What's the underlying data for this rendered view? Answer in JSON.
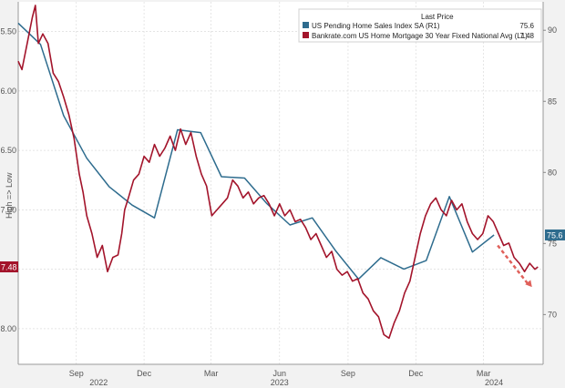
{
  "chart_data": {
    "type": "line",
    "grid": true,
    "legend_position": "top-right",
    "legend_header": "Last Price",
    "left_axis": {
      "inverted": true,
      "range": [
        5.25,
        8.3
      ],
      "ticks": [
        "5.50",
        "6.00",
        "6.50",
        "7.00",
        "7.50",
        "8.00"
      ],
      "tick_values": [
        5.5,
        6.0,
        6.5,
        7.0,
        7.5,
        8.0
      ],
      "overlay_text": "High => Low"
    },
    "right_axis": {
      "range": [
        66.5,
        92.0
      ],
      "ticks": [
        "70",
        "75",
        "80",
        "85",
        "90"
      ],
      "tick_values": [
        70,
        75,
        80,
        85,
        90
      ]
    },
    "x_axis": {
      "range": [
        "2022-06-15",
        "2024-05-20"
      ],
      "ticks": [
        {
          "date": "2022-09-01",
          "label": "Sep"
        },
        {
          "date": "2022-12-01",
          "label": "Dec"
        },
        {
          "date": "2023-03-01",
          "label": "Mar"
        },
        {
          "date": "2023-06-01",
          "label": "Jun"
        },
        {
          "date": "2023-09-01",
          "label": "Sep"
        },
        {
          "date": "2023-12-01",
          "label": "Dec"
        },
        {
          "date": "2024-03-01",
          "label": "Mar"
        }
      ],
      "years": [
        {
          "date": "2022-10-01",
          "label": "2022"
        },
        {
          "date": "2023-06-01",
          "label": "2023"
        },
        {
          "date": "2024-03-15",
          "label": "2024"
        }
      ]
    },
    "series": [
      {
        "name": "US Pending Home Sales Index SA (R1)",
        "axis": "right",
        "color": "#2e6c8e",
        "last_label": "75.6",
        "last_value": 75.6,
        "points": [
          [
            "2022-06-15",
            90.5
          ],
          [
            "2022-07-15",
            89.0
          ],
          [
            "2022-08-15",
            84.0
          ],
          [
            "2022-09-15",
            81.0
          ],
          [
            "2022-10-15",
            79.0
          ],
          [
            "2022-11-15",
            77.7
          ],
          [
            "2022-12-15",
            76.8
          ],
          [
            "2023-01-15",
            83.0
          ],
          [
            "2023-02-15",
            82.8
          ],
          [
            "2023-03-15",
            79.7
          ],
          [
            "2023-04-15",
            79.6
          ],
          [
            "2023-05-15",
            77.8
          ],
          [
            "2023-06-15",
            76.3
          ],
          [
            "2023-07-15",
            76.8
          ],
          [
            "2023-08-15",
            74.5
          ],
          [
            "2023-09-15",
            72.5
          ],
          [
            "2023-10-15",
            74.0
          ],
          [
            "2023-11-15",
            73.2
          ],
          [
            "2023-12-15",
            73.8
          ],
          [
            "2024-01-15",
            78.3
          ],
          [
            "2024-02-15",
            74.4
          ],
          [
            "2024-03-15",
            75.6
          ]
        ]
      },
      {
        "name": "Bankrate.com US Home Mortgage 30 Year Fixed National Avg  (L1)",
        "axis": "left",
        "color": "#a3142b",
        "last_label": "7.48",
        "last_value": 7.48,
        "points": [
          [
            "2022-06-15",
            5.75
          ],
          [
            "2022-06-20",
            5.82
          ],
          [
            "2022-06-28",
            5.57
          ],
          [
            "2022-07-04",
            5.38
          ],
          [
            "2022-07-08",
            5.28
          ],
          [
            "2022-07-12",
            5.6
          ],
          [
            "2022-07-18",
            5.52
          ],
          [
            "2022-07-25",
            5.6
          ],
          [
            "2022-08-01",
            5.85
          ],
          [
            "2022-08-08",
            5.92
          ],
          [
            "2022-08-15",
            6.05
          ],
          [
            "2022-08-22",
            6.2
          ],
          [
            "2022-08-29",
            6.4
          ],
          [
            "2022-09-05",
            6.7
          ],
          [
            "2022-09-10",
            6.85
          ],
          [
            "2022-09-15",
            7.05
          ],
          [
            "2022-09-22",
            7.2
          ],
          [
            "2022-09-29",
            7.4
          ],
          [
            "2022-10-06",
            7.3
          ],
          [
            "2022-10-13",
            7.52
          ],
          [
            "2022-10-20",
            7.4
          ],
          [
            "2022-10-27",
            7.38
          ],
          [
            "2022-11-01",
            7.2
          ],
          [
            "2022-11-05",
            7.0
          ],
          [
            "2022-11-10",
            6.9
          ],
          [
            "2022-11-17",
            6.75
          ],
          [
            "2022-11-24",
            6.7
          ],
          [
            "2022-12-01",
            6.55
          ],
          [
            "2022-12-08",
            6.6
          ],
          [
            "2022-12-15",
            6.45
          ],
          [
            "2022-12-22",
            6.55
          ],
          [
            "2022-12-29",
            6.48
          ],
          [
            "2023-01-05",
            6.38
          ],
          [
            "2023-01-12",
            6.5
          ],
          [
            "2023-01-19",
            6.32
          ],
          [
            "2023-01-26",
            6.45
          ],
          [
            "2023-02-02",
            6.35
          ],
          [
            "2023-02-09",
            6.55
          ],
          [
            "2023-02-16",
            6.7
          ],
          [
            "2023-02-23",
            6.8
          ],
          [
            "2023-03-02",
            7.05
          ],
          [
            "2023-03-09",
            7.0
          ],
          [
            "2023-03-16",
            6.95
          ],
          [
            "2023-03-23",
            6.9
          ],
          [
            "2023-03-30",
            6.75
          ],
          [
            "2023-04-06",
            6.8
          ],
          [
            "2023-04-13",
            6.9
          ],
          [
            "2023-04-20",
            6.85
          ],
          [
            "2023-04-27",
            6.95
          ],
          [
            "2023-05-04",
            6.9
          ],
          [
            "2023-05-11",
            6.88
          ],
          [
            "2023-05-18",
            6.95
          ],
          [
            "2023-05-25",
            7.05
          ],
          [
            "2023-06-01",
            6.95
          ],
          [
            "2023-06-08",
            7.05
          ],
          [
            "2023-06-15",
            7.0
          ],
          [
            "2023-06-22",
            7.1
          ],
          [
            "2023-06-29",
            7.08
          ],
          [
            "2023-07-06",
            7.15
          ],
          [
            "2023-07-13",
            7.25
          ],
          [
            "2023-07-20",
            7.2
          ],
          [
            "2023-07-27",
            7.3
          ],
          [
            "2023-08-03",
            7.4
          ],
          [
            "2023-08-10",
            7.35
          ],
          [
            "2023-08-17",
            7.5
          ],
          [
            "2023-08-24",
            7.55
          ],
          [
            "2023-08-31",
            7.52
          ],
          [
            "2023-09-07",
            7.6
          ],
          [
            "2023-09-14",
            7.58
          ],
          [
            "2023-09-21",
            7.7
          ],
          [
            "2023-09-28",
            7.75
          ],
          [
            "2023-10-05",
            7.85
          ],
          [
            "2023-10-12",
            7.9
          ],
          [
            "2023-10-19",
            8.05
          ],
          [
            "2023-10-26",
            8.08
          ],
          [
            "2023-11-02",
            7.95
          ],
          [
            "2023-11-09",
            7.85
          ],
          [
            "2023-11-16",
            7.7
          ],
          [
            "2023-11-23",
            7.6
          ],
          [
            "2023-11-30",
            7.4
          ],
          [
            "2023-12-07",
            7.2
          ],
          [
            "2023-12-14",
            7.05
          ],
          [
            "2023-12-21",
            6.95
          ],
          [
            "2023-12-28",
            6.9
          ],
          [
            "2024-01-04",
            7.0
          ],
          [
            "2024-01-11",
            7.05
          ],
          [
            "2024-01-18",
            6.92
          ],
          [
            "2024-01-25",
            7.0
          ],
          [
            "2024-02-01",
            6.95
          ],
          [
            "2024-02-08",
            7.1
          ],
          [
            "2024-02-15",
            7.2
          ],
          [
            "2024-02-22",
            7.25
          ],
          [
            "2024-02-29",
            7.2
          ],
          [
            "2024-03-07",
            7.05
          ],
          [
            "2024-03-14",
            7.1
          ],
          [
            "2024-03-21",
            7.2
          ],
          [
            "2024-03-28",
            7.3
          ],
          [
            "2024-04-04",
            7.28
          ],
          [
            "2024-04-11",
            7.4
          ],
          [
            "2024-04-18",
            7.45
          ],
          [
            "2024-04-25",
            7.52
          ],
          [
            "2024-05-02",
            7.45
          ],
          [
            "2024-05-09",
            7.5
          ],
          [
            "2024-05-13",
            7.48
          ]
        ]
      }
    ],
    "annotation": {
      "type": "arrow",
      "color": "#e0605a",
      "from": [
        "2024-03-20",
        7.3
      ],
      "to": [
        "2024-05-05",
        7.65
      ]
    }
  }
}
